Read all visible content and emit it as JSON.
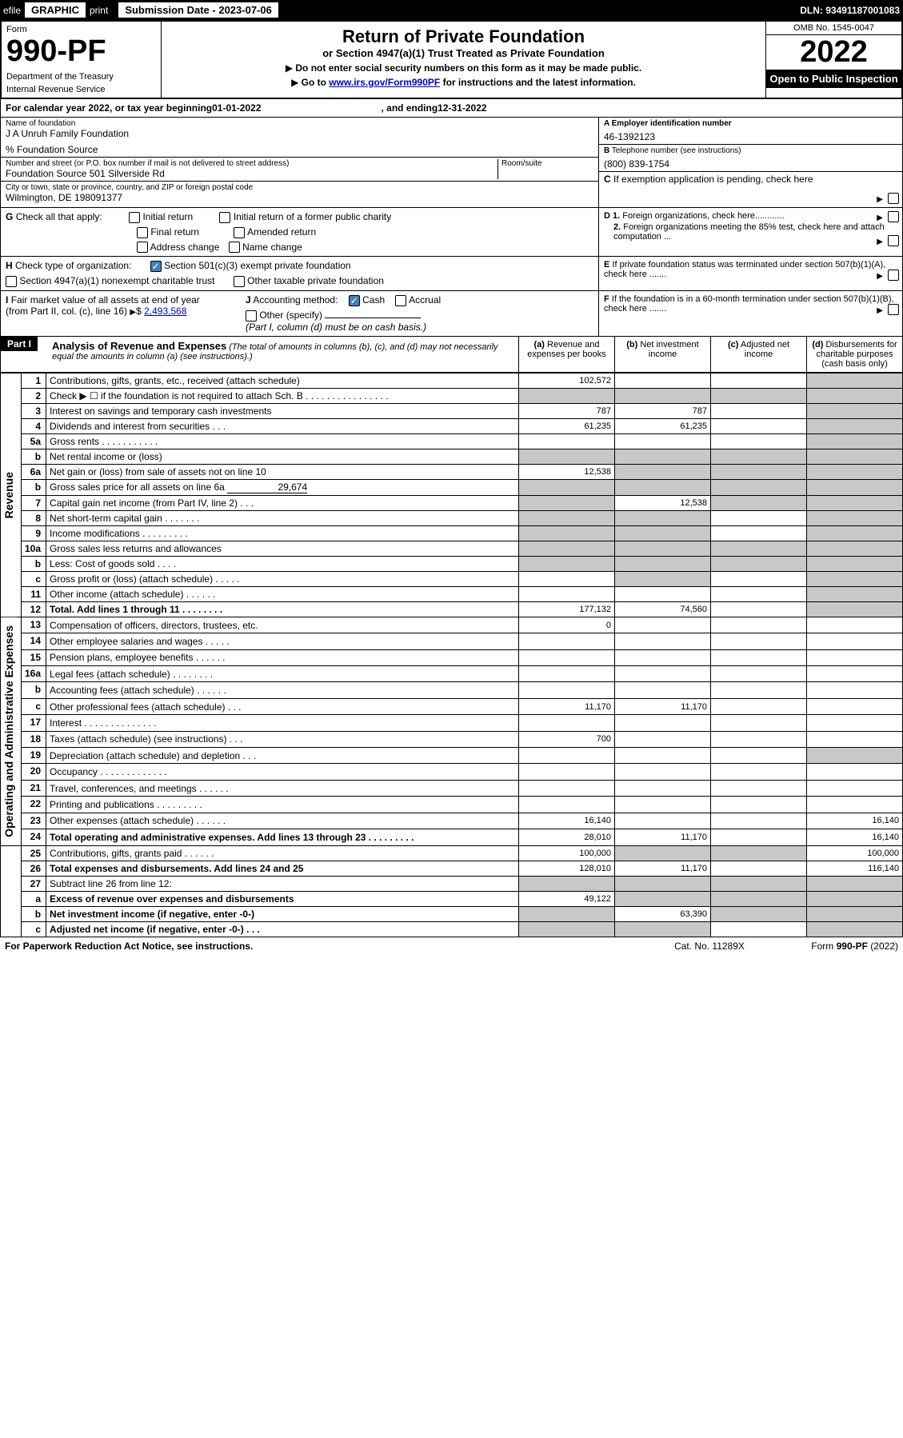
{
  "header_bar": {
    "efile": "efile",
    "graphic": "GRAPHIC",
    "print": "print",
    "sub_date_label": "Submission Date - ",
    "sub_date": "2023-07-06",
    "dln_label": "DLN: ",
    "dln": "93491187001083"
  },
  "form_header": {
    "form_label": "Form",
    "form_num": "990-PF",
    "dept": "Department of the Treasury",
    "irs": "Internal Revenue Service",
    "title": "Return of Private Foundation",
    "subtitle": "or Section 4947(a)(1) Trust Treated as Private Foundation",
    "inst1": "Do not enter social security numbers on this form as it may be made public.",
    "inst2a": "Go to ",
    "inst2_link": "www.irs.gov/Form990PF",
    "inst2b": " for instructions and the latest information.",
    "omb": "OMB No. 1545-0047",
    "year": "2022",
    "open": "Open to Public Inspection"
  },
  "calendar_year": {
    "text1": "For calendar year 2022, or tax year beginning ",
    "begin": "01-01-2022",
    "text2": ", and ending ",
    "end": "12-31-2022"
  },
  "entity": {
    "name_lbl": "Name of foundation",
    "name": "J A Unruh Family Foundation",
    "co": "% Foundation Source",
    "addr_lbl": "Number and street (or P.O. box number if mail is not delivered to street address)",
    "addr": "Foundation Source 501 Silverside Rd",
    "room_lbl": "Room/suite",
    "city_lbl": "City or town, state or province, country, and ZIP or foreign postal code",
    "city": "Wilmington, DE  198091377",
    "ein_lbl": "A Employer identification number",
    "ein": "46-1392123",
    "tel_lbl": "B",
    "tel_text": "Telephone number (see instructions)",
    "tel": "(800) 839-1754",
    "c_lbl": "C",
    "c_text": "If exemption application is pending, check here"
  },
  "checks": {
    "g_label": "G",
    "g_text": "Check all that apply:",
    "g_initial": "Initial return",
    "g_initial_former": "Initial return of a former public charity",
    "g_final": "Final return",
    "g_amended": "Amended return",
    "g_addr": "Address change",
    "g_name": "Name change",
    "h_label": "H",
    "h_text": "Check type of organization:",
    "h_501c3": "Section 501(c)(3) exempt private foundation",
    "h_4947": "Section 4947(a)(1) nonexempt charitable trust",
    "h_other_tax": "Other taxable private foundation",
    "i_label": "I",
    "i_text1": "Fair market value of all assets at end of year (from Part II, col. (c), line 16)",
    "i_amount": "2,493,568",
    "j_label": "J",
    "j_text": "Accounting method:",
    "j_cash": "Cash",
    "j_accrual": "Accrual",
    "j_other": "Other (specify)",
    "j_note": "(Part I, column (d) must be on cash basis.)",
    "d1": "D 1.",
    "d1_text": "Foreign organizations, check here............",
    "d2": "2.",
    "d2_text": "Foreign organizations meeting the 85% test, check here and attach computation ...",
    "e_label": "E",
    "e_text": "If private foundation status was terminated under section 507(b)(1)(A), check here .......",
    "f_label": "F",
    "f_text": "If the foundation is in a 60-month termination under section 507(b)(1)(B), check here ......."
  },
  "part1": {
    "label": "Part I",
    "title": "Analysis of Revenue and Expenses",
    "title_note": "(The total of amounts in columns (b), (c), and (d) may not necessarily equal the amounts in column (a) (see instructions).)",
    "col_a": "(a)",
    "col_a_text": "Revenue and expenses per books",
    "col_b": "(b)",
    "col_b_text": "Net investment income",
    "col_c": "(c)",
    "col_c_text": "Adjusted net income",
    "col_d": "(d)",
    "col_d_text": "Disbursements for charitable purposes (cash basis only)"
  },
  "sections": {
    "revenue": "Revenue",
    "expenses": "Operating and Administrative Expenses"
  },
  "rows": [
    {
      "n": "1",
      "desc": "Contributions, gifts, grants, etc., received (attach schedule)",
      "a": "102,572",
      "b": "",
      "c": "",
      "d": "shade"
    },
    {
      "n": "2",
      "desc": "Check ▶ ☐ if the foundation is not required to attach Sch. B    .   .   .   .   .   .   .   .   .   .   .   .   .   .   .   .",
      "a": "shade",
      "b": "shade",
      "c": "shade",
      "d": "shade"
    },
    {
      "n": "3",
      "desc": "Interest on savings and temporary cash investments",
      "a": "787",
      "b": "787",
      "c": "",
      "d": "shade"
    },
    {
      "n": "4",
      "desc": "Dividends and interest from securities    .    .    .",
      "a": "61,235",
      "b": "61,235",
      "c": "",
      "d": "shade"
    },
    {
      "n": "5a",
      "desc": "Gross rents    .    .    .    .    .    .    .    .    .    .    .",
      "a": "",
      "b": "",
      "c": "",
      "d": "shade"
    },
    {
      "n": "b",
      "desc": "Net rental income or (loss)",
      "a": "shade",
      "b": "shade",
      "c": "shade",
      "d": "shade"
    },
    {
      "n": "6a",
      "desc": "Net gain or (loss) from sale of assets not on line 10",
      "a": "12,538",
      "b": "shade",
      "c": "shade",
      "d": "shade"
    },
    {
      "n": "b",
      "desc": "Gross sales price for all assets on line 6a",
      "inline": "29,674",
      "a": "shade",
      "b": "shade",
      "c": "shade",
      "d": "shade"
    },
    {
      "n": "7",
      "desc": "Capital gain net income (from Part IV, line 2)    .    .    .",
      "a": "shade",
      "b": "12,538",
      "c": "shade",
      "d": "shade"
    },
    {
      "n": "8",
      "desc": "Net short-term capital gain   .   .   .   .   .   .   .",
      "a": "shade",
      "b": "shade",
      "c": "",
      "d": "shade"
    },
    {
      "n": "9",
      "desc": "Income modifications   .   .   .   .   .   .   .   .   .",
      "a": "shade",
      "b": "shade",
      "c": "",
      "d": "shade"
    },
    {
      "n": "10a",
      "desc": "Gross sales less returns and allowances",
      "a": "shade",
      "b": "shade",
      "c": "shade",
      "d": "shade"
    },
    {
      "n": "b",
      "desc": "Less: Cost of goods sold    .    .    .    .",
      "a": "shade",
      "b": "shade",
      "c": "shade",
      "d": "shade"
    },
    {
      "n": "c",
      "desc": "Gross profit or (loss) (attach schedule)    .    .    .    .    .",
      "a": "",
      "b": "shade",
      "c": "",
      "d": "shade"
    },
    {
      "n": "11",
      "desc": "Other income (attach schedule)    .   .   .   .   .   .",
      "a": "",
      "b": "",
      "c": "",
      "d": "shade"
    },
    {
      "n": "12",
      "desc": "Total. Add lines 1 through 11    .   .   .   .   .   .   .   .",
      "bold": true,
      "a": "177,132",
      "b": "74,560",
      "c": "",
      "d": "shade"
    },
    {
      "n": "13",
      "desc": "Compensation of officers, directors, trustees, etc.",
      "a": "0",
      "b": "",
      "c": "",
      "d": ""
    },
    {
      "n": "14",
      "desc": "Other employee salaries and wages   .   .   .   .   .",
      "a": "",
      "b": "",
      "c": "",
      "d": ""
    },
    {
      "n": "15",
      "desc": "Pension plans, employee benefits   .   .   .   .   .   .",
      "a": "",
      "b": "",
      "c": "",
      "d": ""
    },
    {
      "n": "16a",
      "desc": "Legal fees (attach schedule)  .   .   .   .   .   .   .   .",
      "a": "",
      "b": "",
      "c": "",
      "d": ""
    },
    {
      "n": "b",
      "desc": "Accounting fees (attach schedule)   .   .   .   .   .   .",
      "a": "",
      "b": "",
      "c": "",
      "d": ""
    },
    {
      "n": "c",
      "desc": "Other professional fees (attach schedule)    .   .   .",
      "a": "11,170",
      "b": "11,170",
      "c": "",
      "d": ""
    },
    {
      "n": "17",
      "desc": "Interest  .   .   .   .   .   .   .   .   .   .   .   .   .   .",
      "a": "",
      "b": "",
      "c": "",
      "d": ""
    },
    {
      "n": "18",
      "desc": "Taxes (attach schedule) (see instructions)    .   .   .",
      "a": "700",
      "b": "",
      "c": "",
      "d": ""
    },
    {
      "n": "19",
      "desc": "Depreciation (attach schedule) and depletion    .   .   .",
      "a": "",
      "b": "",
      "c": "",
      "d": "shade"
    },
    {
      "n": "20",
      "desc": "Occupancy  .   .   .   .   .   .   .   .   .   .   .   .   .",
      "a": "",
      "b": "",
      "c": "",
      "d": ""
    },
    {
      "n": "21",
      "desc": "Travel, conferences, and meetings  .   .   .   .   .   .",
      "a": "",
      "b": "",
      "c": "",
      "d": ""
    },
    {
      "n": "22",
      "desc": "Printing and publications  .   .   .   .   .   .   .   .   .",
      "a": "",
      "b": "",
      "c": "",
      "d": ""
    },
    {
      "n": "23",
      "desc": "Other expenses (attach schedule)  .   .   .   .   .   .",
      "a": "16,140",
      "b": "",
      "c": "",
      "d": "16,140"
    },
    {
      "n": "24",
      "desc": "Total operating and administrative expenses. Add lines 13 through 23   .   .   .   .   .   .   .   .   .",
      "bold": true,
      "a": "28,010",
      "b": "11,170",
      "c": "",
      "d": "16,140"
    },
    {
      "n": "25",
      "desc": "Contributions, gifts, grants paid    .   .   .   .   .   .",
      "a": "100,000",
      "b": "shade",
      "c": "shade",
      "d": "100,000"
    },
    {
      "n": "26",
      "desc": "Total expenses and disbursements. Add lines 24 and 25",
      "bold": true,
      "a": "128,010",
      "b": "11,170",
      "c": "",
      "d": "116,140"
    },
    {
      "n": "27",
      "desc": "Subtract line 26 from line 12:",
      "a": "shade",
      "b": "shade",
      "c": "shade",
      "d": "shade"
    },
    {
      "n": "a",
      "desc": "Excess of revenue over expenses and disbursements",
      "bold": true,
      "a": "49,122",
      "b": "shade",
      "c": "shade",
      "d": "shade"
    },
    {
      "n": "b",
      "desc": "Net investment income (if negative, enter -0-)",
      "bold": true,
      "a": "shade",
      "b": "63,390",
      "c": "shade",
      "d": "shade"
    },
    {
      "n": "c",
      "desc": "Adjusted net income (if negative, enter -0-)   .   .   .",
      "bold": true,
      "a": "shade",
      "b": "shade",
      "c": "",
      "d": "shade"
    }
  ],
  "footer": {
    "left": "For Paperwork Reduction Act Notice, see instructions.",
    "cat": "Cat. No. 11289X",
    "form": "Form 990-PF (2022)"
  },
  "colors": {
    "shade": "#c8c8c8",
    "link": "#0000cc",
    "check_bg": "#4080c0"
  }
}
